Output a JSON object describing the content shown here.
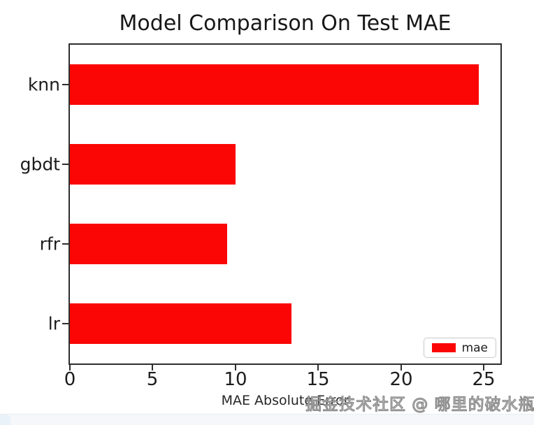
{
  "chart_data": {
    "type": "bar",
    "orientation": "horizontal",
    "title": "Model Comparison On Test MAE",
    "categories": [
      "knn",
      "gbdt",
      "rfr",
      "lr"
    ],
    "series": [
      {
        "name": "mae",
        "values": [
          24.7,
          10.0,
          9.5,
          13.4
        ],
        "color": "#fb0505"
      }
    ],
    "xlabel": "MAE Absolute Error",
    "ylabel": "",
    "xlim": [
      0,
      26
    ],
    "xticks": [
      0,
      5,
      10,
      15,
      20,
      25
    ],
    "bar_height_fraction": 0.5,
    "grid": false,
    "legend_position": "lower right"
  },
  "legend": {
    "label": "mae"
  },
  "watermark": {
    "text": "掘金技术社区 @ 哪里的破水瓶",
    "fill": "#ffffff",
    "outline": "#828282"
  },
  "page": {
    "background": "#ffffff",
    "bottom_strip_color": "#f5f7fa",
    "corner_chip_color": "#e9f1f9"
  },
  "colors": {
    "bar": "#fb0505",
    "spine": "#2e2e2e",
    "text": "#1c1c1c"
  }
}
